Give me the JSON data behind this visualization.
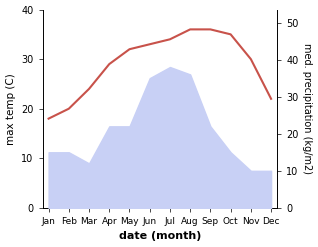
{
  "months": [
    "Jan",
    "Feb",
    "Mar",
    "Apr",
    "May",
    "Jun",
    "Jul",
    "Aug",
    "Sep",
    "Oct",
    "Nov",
    "Dec"
  ],
  "max_temp": [
    18,
    20,
    24,
    29,
    32,
    33,
    34,
    36,
    36,
    35,
    30,
    22
  ],
  "precipitation": [
    15,
    15,
    12,
    22,
    22,
    35,
    38,
    36,
    22,
    15,
    10,
    10
  ],
  "temp_color": "#c8524a",
  "precip_fill_color": "#c8d0f5",
  "temp_ylim": [
    0,
    40
  ],
  "precip_ylim": [
    0,
    53.5
  ],
  "ylabel_left": "max temp (C)",
  "ylabel_right": "med. precipitation (kg/m2)",
  "xlabel": "date (month)",
  "left_ticks": [
    0,
    10,
    20,
    30,
    40
  ],
  "right_ticks": [
    0,
    10,
    20,
    30,
    40,
    50
  ],
  "bg_color": "#ffffff"
}
